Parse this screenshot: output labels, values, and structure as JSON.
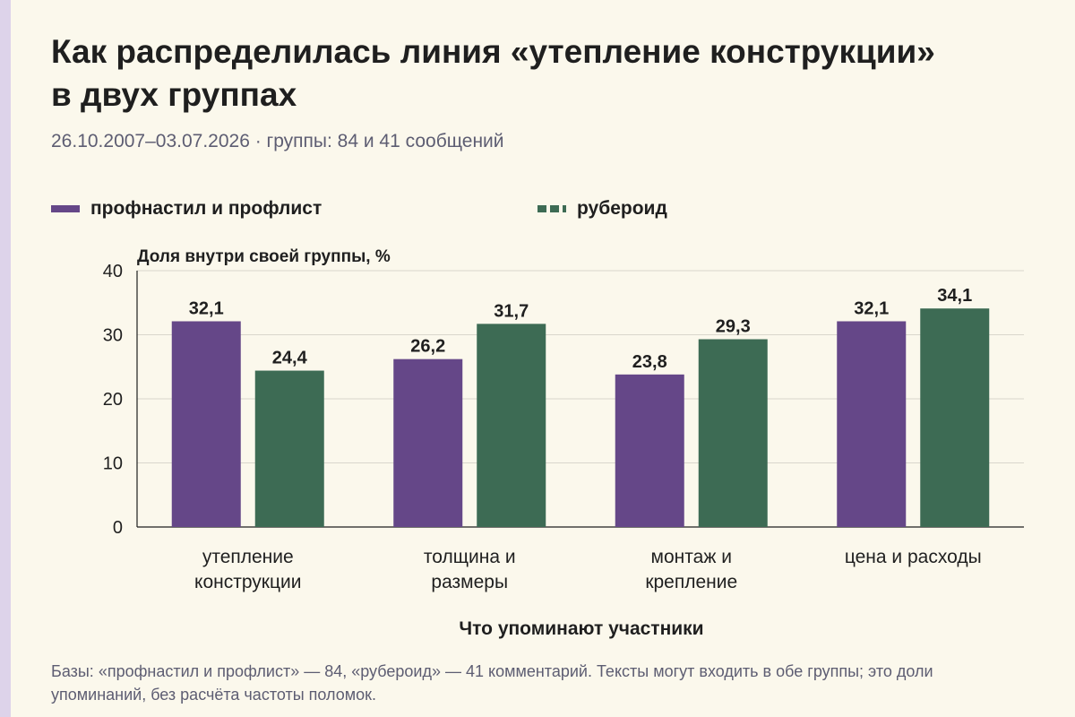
{
  "header": {
    "title": "Как распределилась линия «утепление конструкции» в двух группах",
    "subtitle": "26.10.2007–03.07.2026 · группы: 84 и 41 сообщений"
  },
  "footnote": "Базы: «профнастил и профлист» — 84, «рубероид» — 41 комментарий. Тексты могут входить в обе группы; это доли упоминаний, без расчёта частоты поломок.",
  "colors": {
    "background": "#fbf8ec",
    "purple": "#654788",
    "green": "#3d6b54",
    "grid": "#d9d6cc"
  },
  "chart_data": {
    "type": "bar",
    "title": "Как распределилась линия «утепление конструкции» в двух группах",
    "xlabel": "Что упоминают участники",
    "ylabel": "Доля внутри своей группы, %",
    "ylim": [
      0,
      40
    ],
    "yticks": [
      "0",
      "10",
      "20",
      "30",
      "40"
    ],
    "categories": [
      [
        "утепление",
        "конструкции"
      ],
      [
        "толщина и",
        "размеры"
      ],
      [
        "монтаж и",
        "крепление"
      ],
      [
        "цена и расходы"
      ]
    ],
    "series": [
      {
        "name": "профнастил и профлист",
        "color": "#654788",
        "values": [
          32.1,
          26.2,
          23.8,
          32.1
        ],
        "labels": [
          "32,1",
          "26,2",
          "23,8",
          "32,1"
        ]
      },
      {
        "name": "рубероид",
        "color": "#3d6b54",
        "values": [
          24.4,
          31.7,
          29.3,
          34.1
        ],
        "labels": [
          "24,4",
          "31,7",
          "29,3",
          "34,1"
        ]
      }
    ],
    "legend_position": "top",
    "grid": true
  }
}
